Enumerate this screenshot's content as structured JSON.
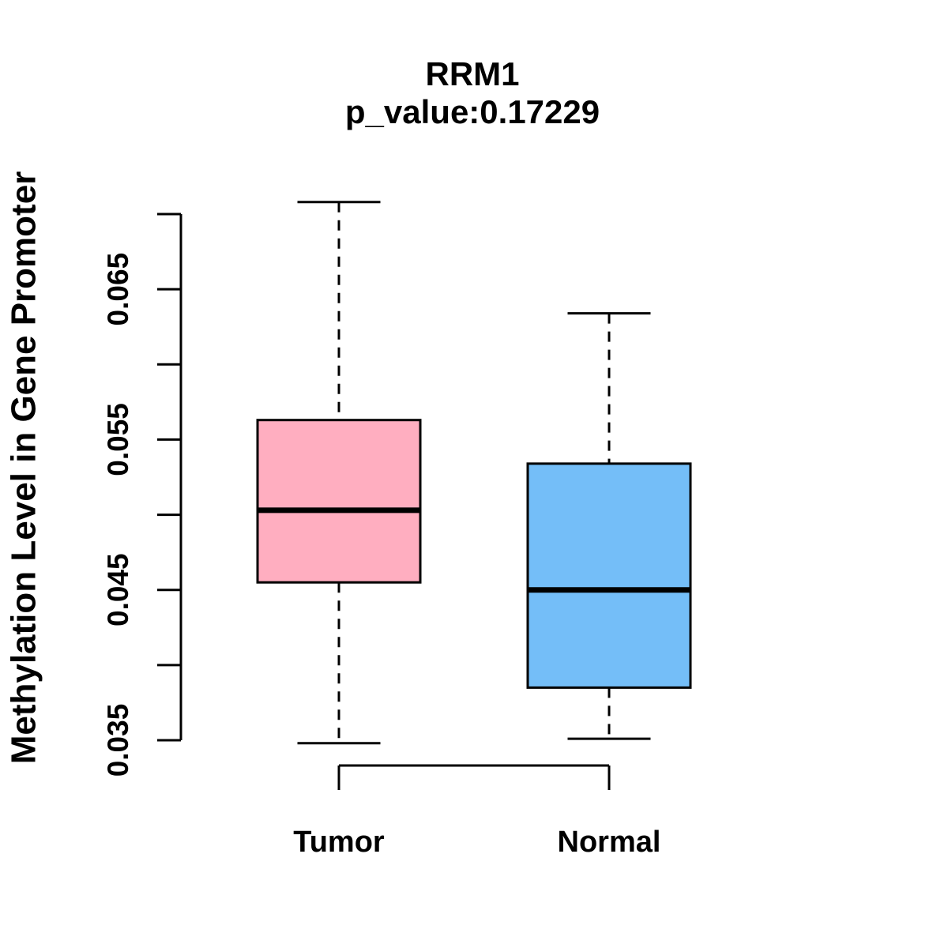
{
  "figure": {
    "background": "#ffffff",
    "foreground": "#000000"
  },
  "chart_data": {
    "type": "boxplot",
    "title": "RRM1",
    "subtitle": "p_value:0.17229",
    "ylabel": "Methylation Level in Gene Promoter",
    "xlabel": "",
    "grid": false,
    "legend": null,
    "y_axis": {
      "min": 0.035,
      "max": 0.07,
      "tick_step": 0.005,
      "tick_values": [
        0.035,
        0.04,
        0.045,
        0.05,
        0.055,
        0.06,
        0.065,
        0.07
      ],
      "labeled_ticks": [
        {
          "value": 0.035,
          "label": "0.035"
        },
        {
          "value": 0.045,
          "label": "0.045"
        },
        {
          "value": 0.055,
          "label": "0.055"
        },
        {
          "value": 0.065,
          "label": "0.065"
        }
      ]
    },
    "categories": [
      "Tumor",
      "Normal"
    ],
    "groups": [
      {
        "name": "Tumor",
        "fill_color": "#FFAEC0",
        "stats": {
          "min": 0.0348,
          "q1": 0.0455,
          "median": 0.0503,
          "q3": 0.0563,
          "max": 0.0708
        }
      },
      {
        "name": "Normal",
        "fill_color": "#74BEF8",
        "stats": {
          "min": 0.0351,
          "q1": 0.0385,
          "median": 0.045,
          "q3": 0.0534,
          "max": 0.0634
        }
      }
    ],
    "box_border_color": "#000000",
    "median_color": "#000000",
    "whisker_style": "dashed"
  }
}
